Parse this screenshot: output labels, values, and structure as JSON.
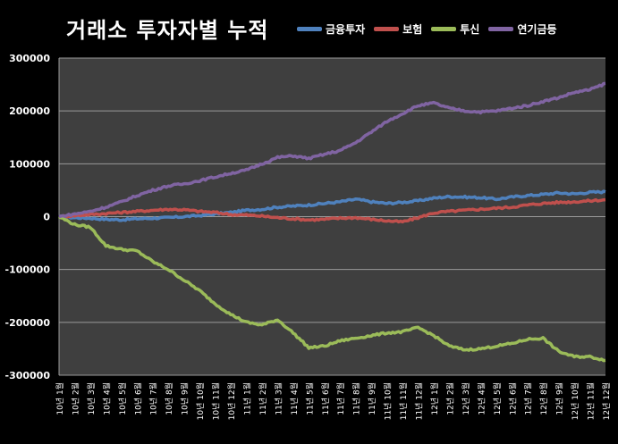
{
  "chart_data": {
    "type": "line",
    "title": "거래소 투자자별 누적",
    "ylim": [
      -300000,
      300000
    ],
    "yticks": [
      "300000",
      "200000",
      "100000",
      "0",
      "-100000",
      "-200000",
      "-300000"
    ],
    "grid": true,
    "legend_position": "top-right",
    "categories": [
      "10년 1월",
      "10년 2월",
      "10년 3월",
      "10년 4월",
      "10년 5월",
      "10년 6월",
      "10년 7월",
      "10년 8월",
      "10년 9월",
      "10년 10월",
      "10년 11월",
      "10년 12월",
      "11년 1월",
      "11년 2월",
      "11년 3월",
      "11년 4월",
      "11년 5월",
      "11년 6월",
      "11년 7월",
      "11년 8월",
      "11년 9월",
      "11년 10월",
      "11년 11월",
      "11년 12월",
      "12년 1월",
      "12년 2월",
      "12년 3월",
      "12년 4월",
      "12년 5월",
      "12년 6월",
      "12년 7월",
      "12년 8월",
      "12년 9월",
      "12년 10월",
      "12년 11월",
      "12년 12월"
    ],
    "series": [
      {
        "name": "금융투자",
        "color": "#4f81bd",
        "values": [
          0,
          -2000,
          -3000,
          -5000,
          -6000,
          -4000,
          -3000,
          -2000,
          0,
          2000,
          5000,
          8000,
          12000,
          14000,
          18000,
          20000,
          22000,
          25000,
          28000,
          33000,
          28000,
          25000,
          27000,
          30000,
          35000,
          38000,
          37000,
          36000,
          33000,
          37000,
          40000,
          42000,
          45000,
          43000,
          46000,
          47000
        ]
      },
      {
        "name": "보험",
        "color": "#c0504d",
        "values": [
          0,
          2000,
          4000,
          6000,
          8000,
          10000,
          12000,
          14000,
          13000,
          10000,
          8000,
          4000,
          3000,
          1000,
          -2000,
          -4000,
          -6000,
          -5000,
          -3000,
          -2000,
          -5000,
          -8000,
          -10000,
          -2000,
          7000,
          10000,
          12000,
          14000,
          16000,
          18000,
          22000,
          25000,
          27000,
          28000,
          30000,
          32000
        ]
      },
      {
        "name": "투신",
        "color": "#9bbb59",
        "values": [
          0,
          -15000,
          -20000,
          -55000,
          -62000,
          -65000,
          -85000,
          -100000,
          -120000,
          -140000,
          -165000,
          -185000,
          -200000,
          -205000,
          -195000,
          -220000,
          -248000,
          -245000,
          -235000,
          -230000,
          -225000,
          -220000,
          -218000,
          -210000,
          -225000,
          -245000,
          -252000,
          -250000,
          -245000,
          -240000,
          -232000,
          -230000,
          -255000,
          -265000,
          -265000,
          -272000
        ]
      },
      {
        "name": "연기금등",
        "color": "#8064a2",
        "values": [
          0,
          5000,
          10000,
          18000,
          28000,
          40000,
          50000,
          58000,
          62000,
          68000,
          75000,
          82000,
          88000,
          100000,
          112000,
          115000,
          110000,
          118000,
          125000,
          140000,
          160000,
          180000,
          195000,
          210000,
          215000,
          205000,
          200000,
          198000,
          200000,
          205000,
          210000,
          218000,
          225000,
          235000,
          240000,
          252000
        ]
      }
    ]
  }
}
